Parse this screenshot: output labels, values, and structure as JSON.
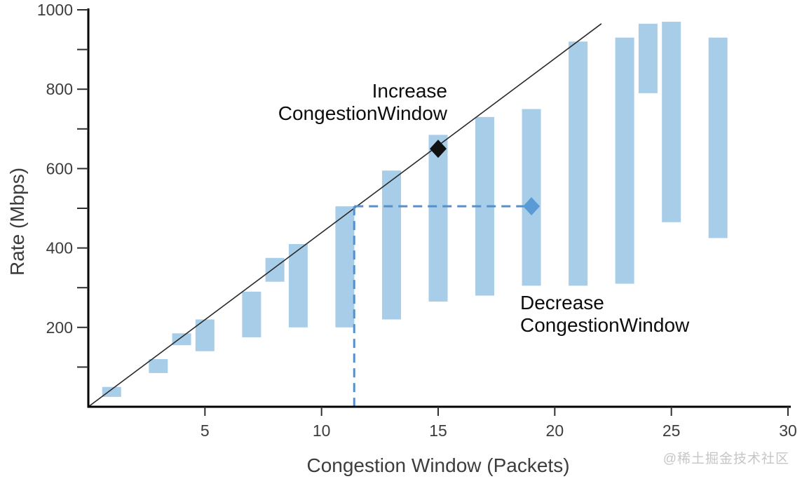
{
  "watermark": "@稀土掘金技术社区",
  "annotations": {
    "increase": {
      "line1": "Increase",
      "line2": "CongestionWindow"
    },
    "decrease": {
      "line1": "Decrease",
      "line2": "CongestionWindow"
    }
  },
  "chart_data": {
    "type": "bar",
    "subtype": "floating-range-bars",
    "title": "",
    "xlabel": "Congestion Window (Packets)",
    "ylabel": "Rate (Mbps)",
    "xlim": [
      0,
      30
    ],
    "ylim": [
      0,
      1000
    ],
    "x_ticks": [
      5,
      10,
      15,
      20,
      25,
      30
    ],
    "y_ticks_labeled": [
      200,
      400,
      600,
      800,
      1000
    ],
    "y_ticks_minor": [
      100,
      300,
      500,
      700,
      900
    ],
    "grid": false,
    "legend": "none",
    "bars": [
      {
        "x": 1,
        "low": 25,
        "high": 50
      },
      {
        "x": 3,
        "low": 85,
        "high": 120
      },
      {
        "x": 4,
        "low": 155,
        "high": 185
      },
      {
        "x": 5,
        "low": 140,
        "high": 220
      },
      {
        "x": 7,
        "low": 175,
        "high": 290
      },
      {
        "x": 8,
        "low": 315,
        "high": 375
      },
      {
        "x": 9,
        "low": 200,
        "high": 410
      },
      {
        "x": 11,
        "low": 200,
        "high": 505
      },
      {
        "x": 13,
        "low": 220,
        "high": 595
      },
      {
        "x": 15,
        "low": 265,
        "high": 685
      },
      {
        "x": 17,
        "low": 280,
        "high": 730
      },
      {
        "x": 19,
        "low": 305,
        "high": 750
      },
      {
        "x": 21,
        "low": 305,
        "high": 920
      },
      {
        "x": 23,
        "low": 310,
        "high": 930
      },
      {
        "x": 24,
        "low": 790,
        "high": 965
      },
      {
        "x": 25,
        "low": 465,
        "high": 970
      },
      {
        "x": 27,
        "low": 425,
        "high": 930
      }
    ],
    "ideal_line": {
      "from": [
        0,
        0
      ],
      "to": [
        22,
        965
      ]
    },
    "markers": [
      {
        "name": "increase-marker",
        "shape": "diamond",
        "color": "#111111",
        "x": 15,
        "y": 650
      },
      {
        "name": "decrease-marker",
        "shape": "diamond",
        "color": "#5b9bd5",
        "x": 19,
        "y": 505
      }
    ],
    "dashed_guides": {
      "corner_x": 11.4,
      "corner_y": 505,
      "horizontal_to_x": 19,
      "vertical_to_y": 0
    },
    "colors": {
      "bar": "#a8cde9",
      "ideal_line": "#2a2a2a",
      "dashed": "#5590cb",
      "axis": "#000000",
      "tick_label": "#3d3d3d",
      "annotation": "#0d0d0d",
      "watermark": "#c6c6c6"
    }
  }
}
